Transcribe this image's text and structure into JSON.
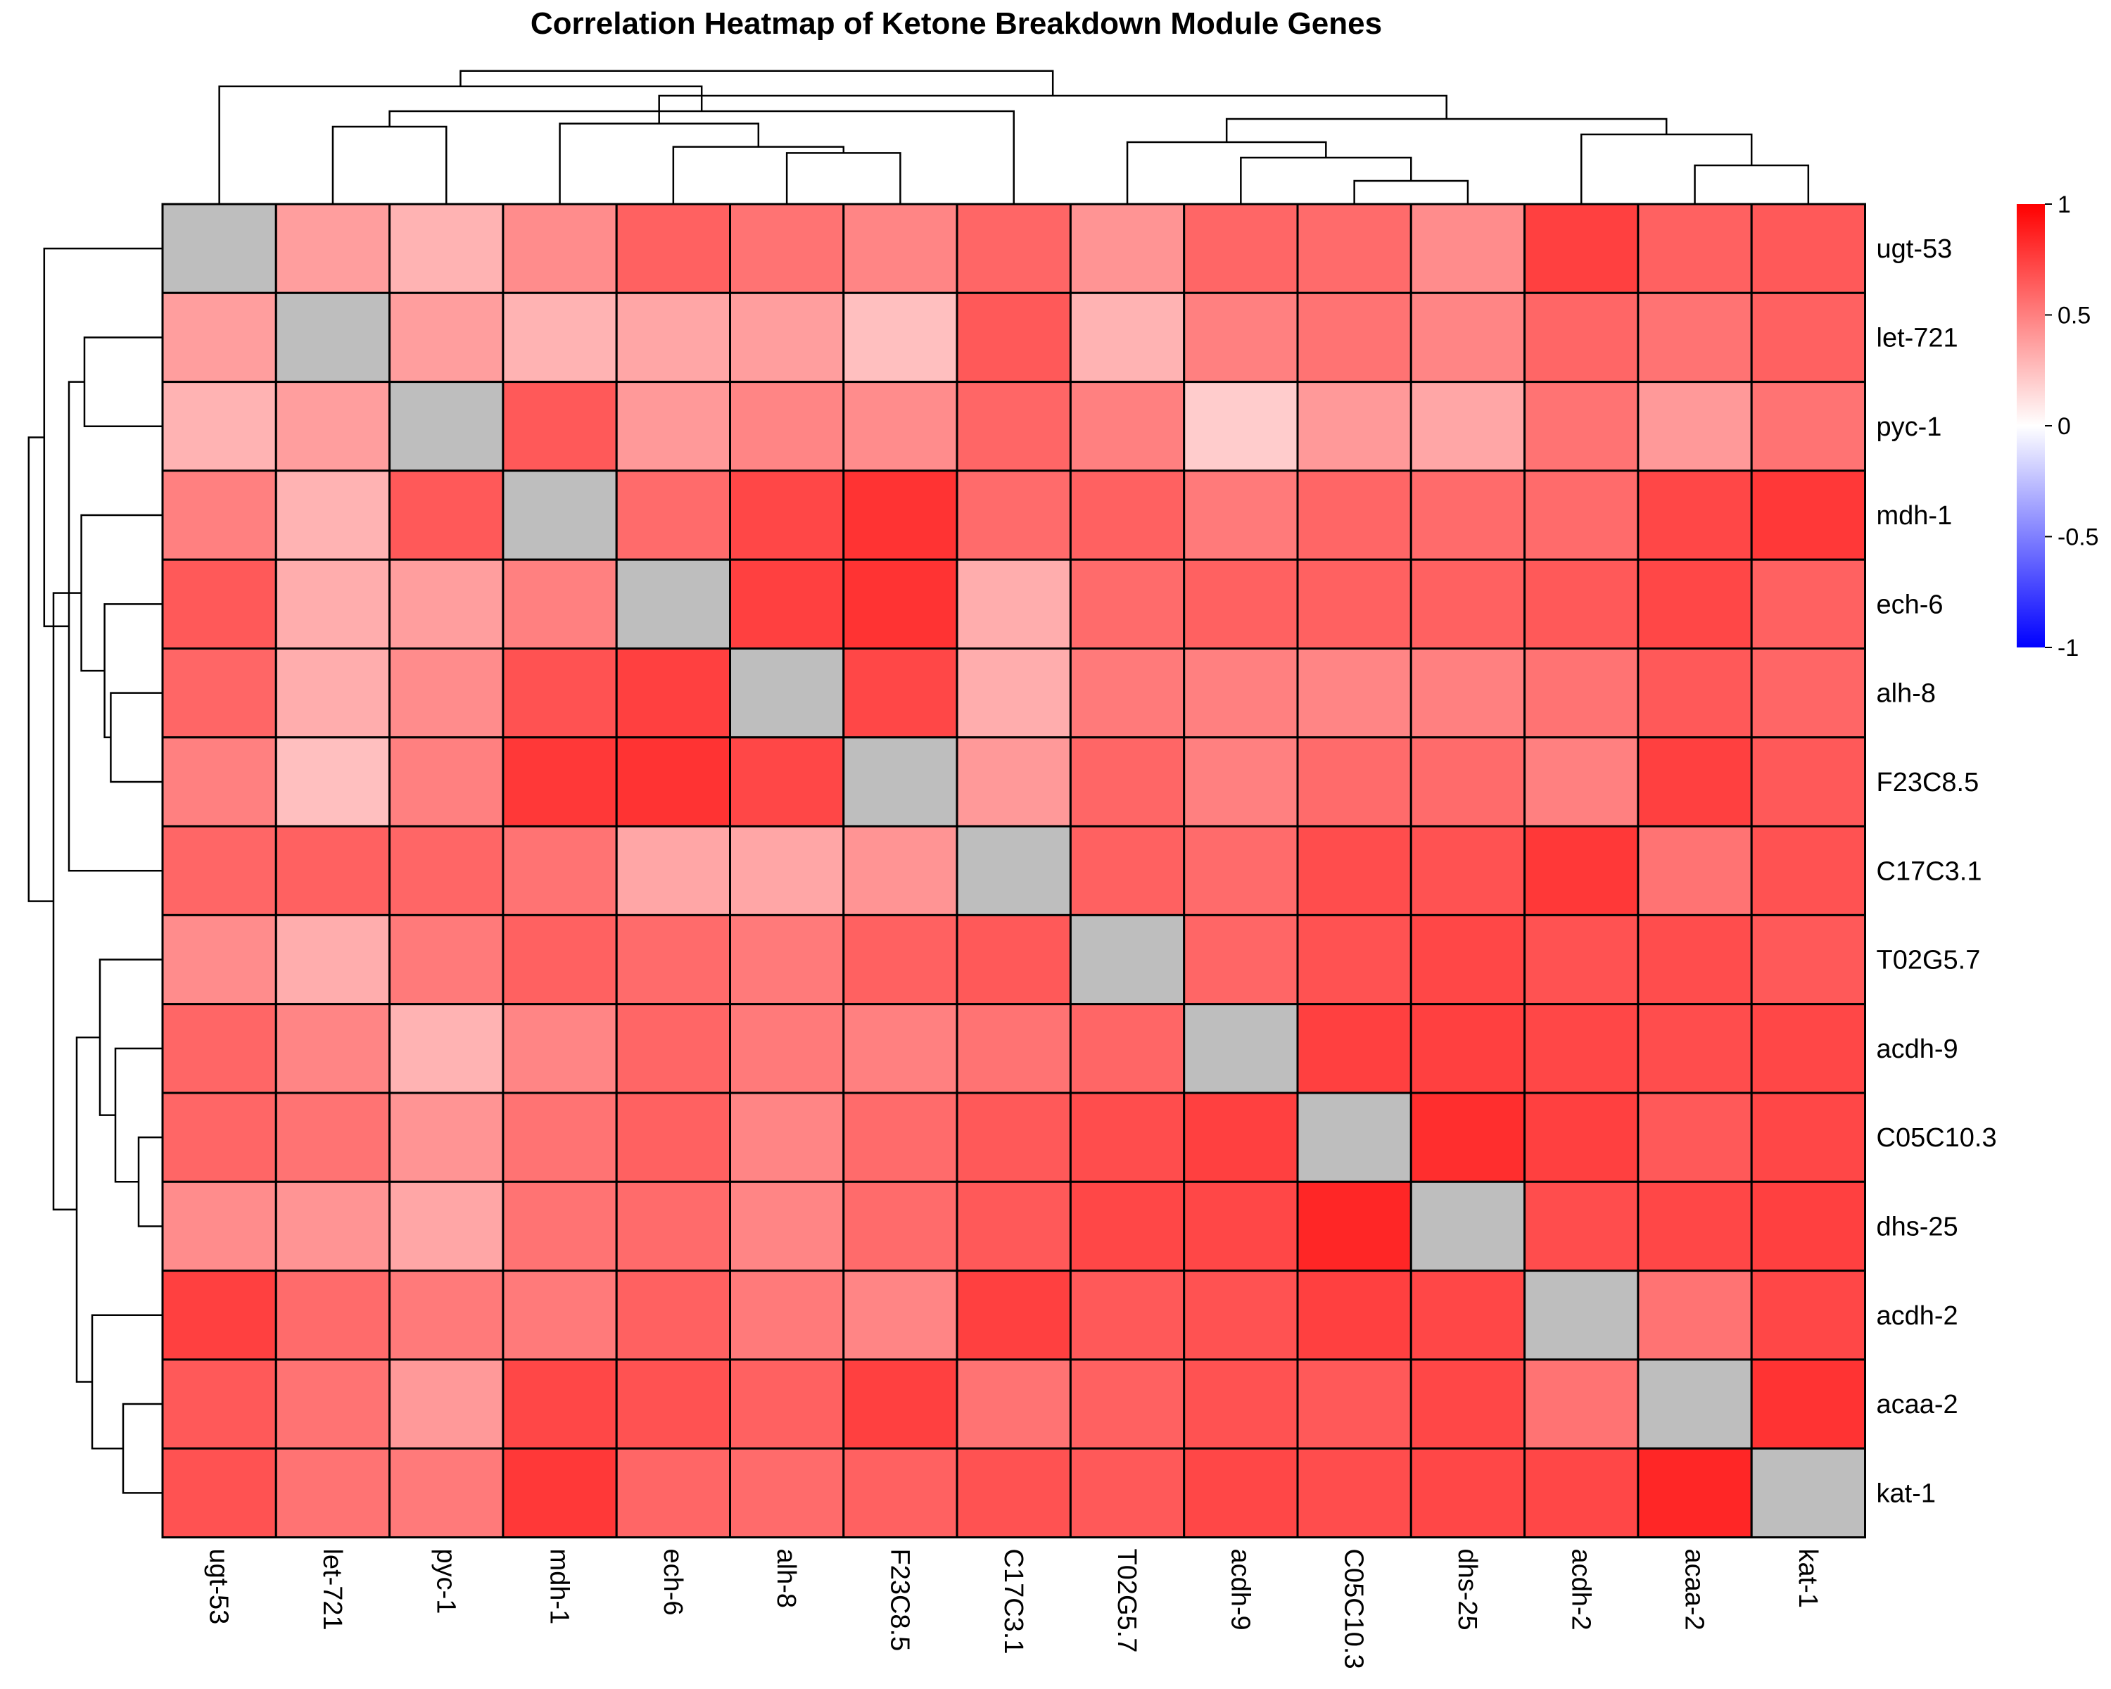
{
  "chart_data": {
    "type": "heatmap",
    "title": "Correlation Heatmap of Ketone Breakdown Module Genes",
    "rows": [
      "ugt-53",
      "let-721",
      "pyc-1",
      "mdh-1",
      "ech-6",
      "alh-8",
      "F23C8.5",
      "C17C3.1",
      "T02G5.7",
      "acdh-9",
      "C05C10.3",
      "dhs-25",
      "acdh-2",
      "acaa-2",
      "kat-1"
    ],
    "cols": [
      "ugt-53",
      "let-721",
      "pyc-1",
      "mdh-1",
      "ech-6",
      "alh-8",
      "F23C8.5",
      "C17C3.1",
      "T02G5.7",
      "acdh-9",
      "C05C10.3",
      "dhs-25",
      "acdh-2",
      "acaa-2",
      "kat-1"
    ],
    "values": [
      [
        null,
        0.38,
        0.3,
        0.45,
        0.62,
        0.55,
        0.48,
        0.6,
        0.42,
        0.6,
        0.58,
        0.45,
        0.75,
        0.62,
        0.65
      ],
      [
        0.38,
        null,
        0.38,
        0.3,
        0.35,
        0.38,
        0.25,
        0.65,
        0.3,
        0.5,
        0.55,
        0.48,
        0.6,
        0.55,
        0.62
      ],
      [
        0.3,
        0.38,
        null,
        0.65,
        0.4,
        0.48,
        0.45,
        0.6,
        0.5,
        0.2,
        0.4,
        0.35,
        0.55,
        0.4,
        0.55
      ],
      [
        0.5,
        0.3,
        0.65,
        null,
        0.58,
        0.72,
        0.8,
        0.58,
        0.62,
        0.52,
        0.6,
        0.58,
        0.58,
        0.72,
        0.78
      ],
      [
        0.65,
        0.32,
        0.38,
        0.5,
        null,
        0.75,
        0.8,
        0.32,
        0.58,
        0.62,
        0.62,
        0.62,
        0.65,
        0.72,
        0.62
      ],
      [
        0.6,
        0.32,
        0.45,
        0.68,
        0.75,
        null,
        0.72,
        0.32,
        0.52,
        0.5,
        0.48,
        0.5,
        0.55,
        0.65,
        0.6
      ],
      [
        0.5,
        0.25,
        0.5,
        0.78,
        0.8,
        0.72,
        null,
        0.4,
        0.6,
        0.5,
        0.58,
        0.58,
        0.5,
        0.75,
        0.65
      ],
      [
        0.6,
        0.62,
        0.6,
        0.55,
        0.35,
        0.35,
        0.42,
        null,
        0.62,
        0.58,
        0.7,
        0.68,
        0.78,
        0.55,
        0.68
      ],
      [
        0.45,
        0.32,
        0.52,
        0.62,
        0.58,
        0.52,
        0.62,
        0.65,
        null,
        0.6,
        0.68,
        0.72,
        0.68,
        0.7,
        0.65
      ],
      [
        0.6,
        0.48,
        0.3,
        0.48,
        0.6,
        0.52,
        0.5,
        0.55,
        0.6,
        null,
        0.75,
        0.75,
        0.72,
        0.7,
        0.72
      ],
      [
        0.6,
        0.55,
        0.42,
        0.55,
        0.62,
        0.48,
        0.58,
        0.65,
        0.7,
        0.75,
        null,
        0.82,
        0.75,
        0.65,
        0.72
      ],
      [
        0.45,
        0.42,
        0.35,
        0.55,
        0.58,
        0.48,
        0.58,
        0.65,
        0.72,
        0.72,
        0.85,
        null,
        0.7,
        0.72,
        0.75
      ],
      [
        0.75,
        0.58,
        0.52,
        0.52,
        0.62,
        0.52,
        0.48,
        0.75,
        0.65,
        0.68,
        0.75,
        0.72,
        null,
        0.55,
        0.72
      ],
      [
        0.65,
        0.55,
        0.4,
        0.72,
        0.68,
        0.62,
        0.75,
        0.55,
        0.62,
        0.68,
        0.65,
        0.72,
        0.55,
        null,
        0.8
      ],
      [
        0.68,
        0.55,
        0.52,
        0.78,
        0.6,
        0.58,
        0.62,
        0.68,
        0.65,
        0.72,
        0.7,
        0.72,
        0.72,
        0.85,
        null
      ]
    ],
    "colorscale": {
      "min": -1,
      "mid": 0,
      "max": 1,
      "low_color": "#0000ff",
      "mid_color": "#ffffff",
      "high_color": "#ff0000",
      "na_color": "#bebebe"
    },
    "colorbar_ticks": [
      "1",
      "0.5",
      "0",
      "-0.5",
      "-1"
    ]
  }
}
